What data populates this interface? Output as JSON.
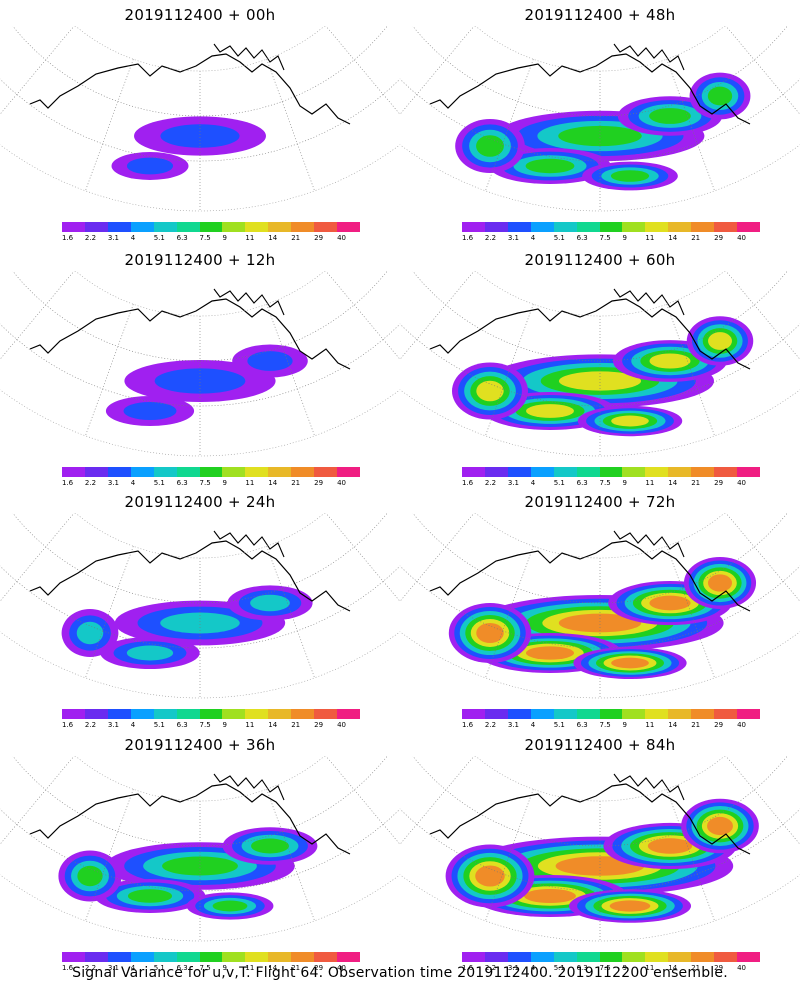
{
  "caption": "Signal Variance for u,v,T. Flight 64. Observation time 2019112400. 2019112200 ensemble.",
  "colorbar": {
    "ticks": [
      "1.6",
      "2.2",
      "3.1",
      "4",
      "5.1",
      "6.3",
      "7.5",
      "9",
      "11",
      "14",
      "21",
      "29",
      "40"
    ],
    "colors": [
      "#a020f0",
      "#6a2cf0",
      "#1e50ff",
      "#0aa0ff",
      "#14c8c8",
      "#10d890",
      "#20d020",
      "#a0e020",
      "#e0e020",
      "#e8b828",
      "#f08c28",
      "#f05a40",
      "#f01e82"
    ]
  },
  "panels": [
    {
      "title": "2019112400 + 00h",
      "intensity": 0
    },
    {
      "title": "2019112400 + 48h",
      "intensity": 4
    },
    {
      "title": "2019112400 + 12h",
      "intensity": 1
    },
    {
      "title": "2019112400 + 60h",
      "intensity": 5
    },
    {
      "title": "2019112400 + 24h",
      "intensity": 2
    },
    {
      "title": "2019112400 + 72h",
      "intensity": 6
    },
    {
      "title": "2019112400 + 36h",
      "intensity": 3
    },
    {
      "title": "2019112400 + 84h",
      "intensity": 7
    }
  ]
}
